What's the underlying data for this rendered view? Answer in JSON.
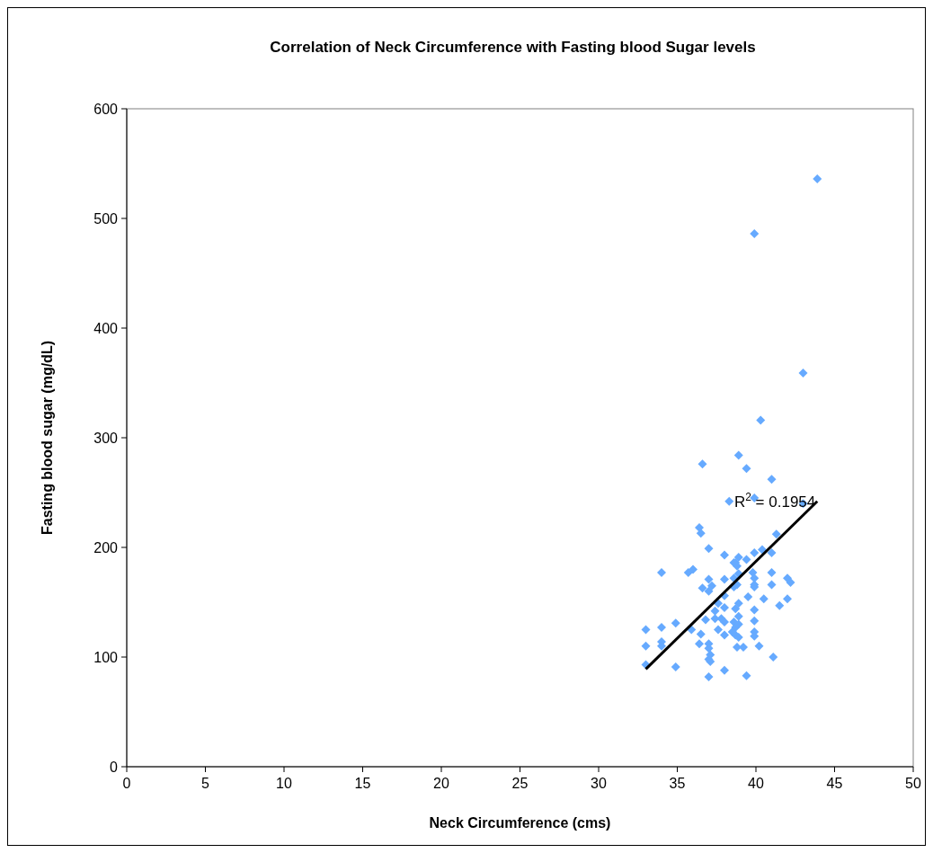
{
  "chart_data": {
    "type": "scatter",
    "title": "Correlation of Neck Circumference with Fasting blood Sugar levels",
    "xlabel": "Neck Circumference (cms)",
    "ylabel": "Fasting blood sugar (mg/dL)",
    "xlim": [
      0,
      50
    ],
    "xticks": [
      0,
      5,
      10,
      15,
      20,
      25,
      30,
      35,
      40,
      45,
      50
    ],
    "ylim": [
      0,
      600
    ],
    "yticks": [
      0,
      100,
      200,
      300,
      400,
      500,
      600
    ],
    "grid": false,
    "marker": "diamond",
    "annotations": [
      "R$^{2}$ = 0.1954"
    ],
    "series": [
      {
        "color": "#66aaff",
        "x": [
          43.9,
          39.9,
          43.0,
          40.3,
          36.6,
          38.9,
          39.4,
          41.0,
          38.3,
          39.9,
          43.0,
          36.4,
          36.5,
          41.3,
          37.0,
          38.0,
          39.9,
          40.4,
          41.0,
          38.7,
          38.9,
          39.4,
          38.6,
          38.8,
          34.0,
          35.7,
          36.0,
          37.0,
          38.0,
          38.6,
          38.9,
          39.8,
          39.9,
          39.9,
          39.9,
          41.0,
          41.0,
          42.0,
          42.2,
          36.6,
          37.0,
          37.2,
          38.6,
          38.8,
          38.0,
          39.5,
          40.5,
          42.0,
          41.5,
          37.6,
          38.0,
          37.4,
          38.9,
          38.7,
          39.9,
          36.8,
          37.4,
          37.8,
          38.0,
          38.9,
          38.6,
          38.7,
          38.9,
          38.5,
          38.7,
          38.9,
          39.9,
          33.0,
          34.0,
          34.9,
          35.9,
          36.5,
          37.6,
          38.0,
          39.9,
          39.9,
          33.0,
          34.0,
          34.0,
          36.4,
          37.0,
          37.0,
          37.1,
          38.8,
          39.2,
          40.2,
          41.1,
          37.0,
          37.1,
          33.0,
          34.9,
          38.0,
          37.0,
          39.4
        ],
        "values": [
          536,
          486,
          359,
          316,
          276,
          284,
          272,
          262,
          242,
          245,
          240,
          218,
          213,
          212,
          199,
          193,
          195,
          198,
          195,
          186,
          191,
          189,
          186,
          183,
          177,
          177,
          180,
          171,
          171,
          172,
          176,
          177,
          172,
          166,
          164,
          177,
          166,
          172,
          168,
          163,
          160,
          165,
          164,
          166,
          156,
          155,
          153,
          153,
          147,
          149,
          145,
          142,
          149,
          144,
          143,
          134,
          135,
          135,
          132,
          137,
          132,
          127,
          130,
          123,
          120,
          118,
          133,
          125,
          127,
          131,
          125,
          121,
          125,
          120,
          123,
          119,
          110,
          114,
          110,
          112,
          112,
          108,
          102,
          109,
          109,
          110,
          100,
          98,
          96,
          93,
          91,
          88,
          82,
          83
        ]
      },
      {
        "type": "line",
        "color": "#000000",
        "marker": "none",
        "x": [
          33.0,
          43.9
        ],
        "values": [
          89,
          242
        ]
      }
    ]
  }
}
